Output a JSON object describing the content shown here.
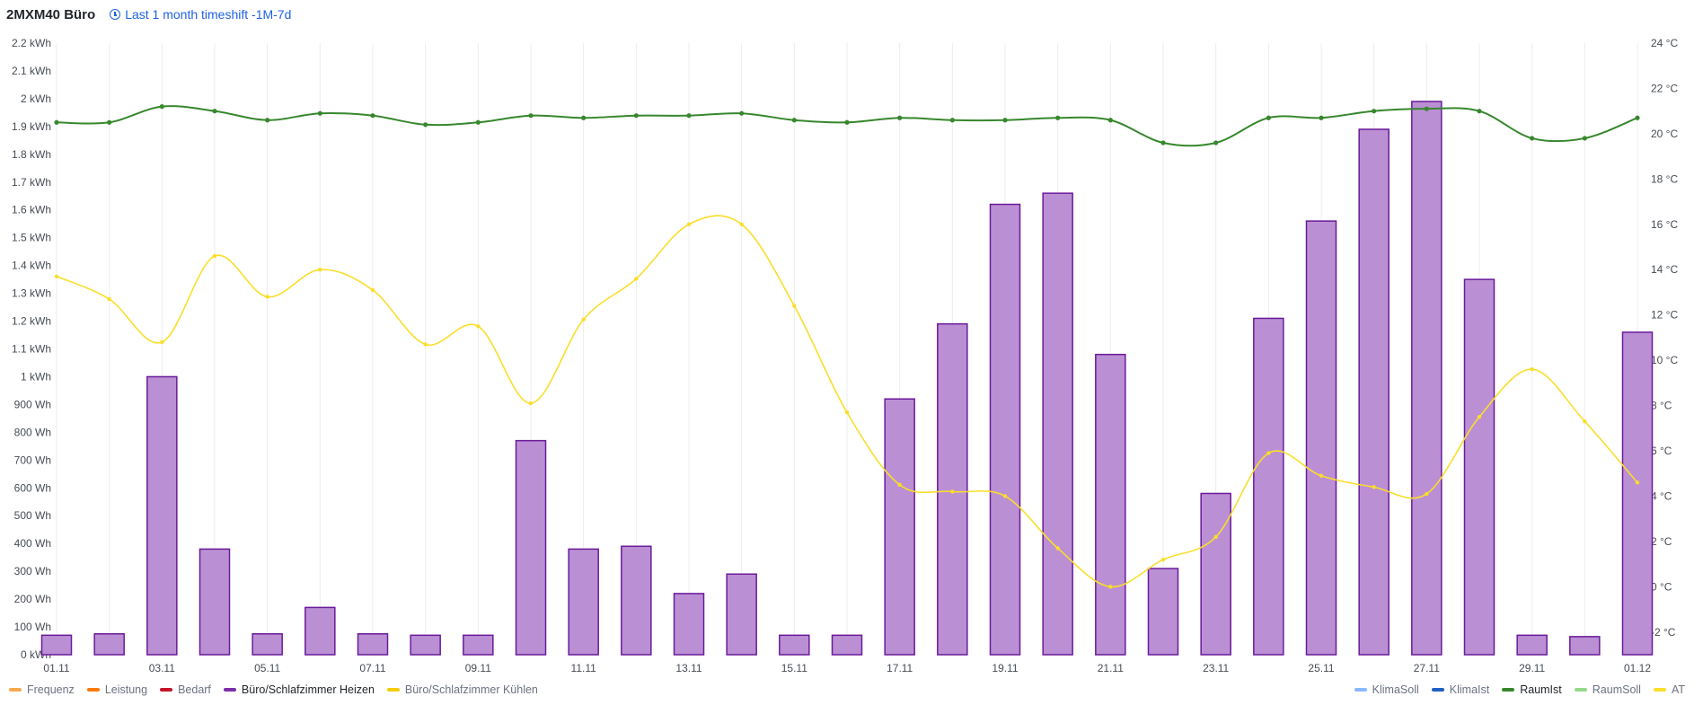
{
  "header": {
    "title": "2MXM40 Büro",
    "timeshift_label": "Last 1 month timeshift -1M-7d"
  },
  "legend_left": [
    {
      "label": "Frequenz",
      "color": "#f5a94d",
      "active": false
    },
    {
      "label": "Leistung",
      "color": "#ff780a",
      "active": false
    },
    {
      "label": "Bedarf",
      "color": "#c4162a",
      "active": false
    },
    {
      "label": "Büro/Schlafzimmer Heizen",
      "color": "#7b2fa8",
      "active": true
    },
    {
      "label": "Büro/Schlafzimmer Kühlen",
      "color": "#f2cc0c",
      "active": false
    }
  ],
  "legend_right": [
    {
      "label": "KlimaSoll",
      "color": "#8ab8ff",
      "active": false
    },
    {
      "label": "KlimaIst",
      "color": "#1f60c4",
      "active": false
    },
    {
      "label": "RaumIst",
      "color": "#37872d",
      "active": true
    },
    {
      "label": "RaumSoll",
      "color": "#96d98d",
      "active": false
    },
    {
      "label": "AT",
      "color": "#fade2a",
      "active": false
    }
  ],
  "chart_data": {
    "type": "bar",
    "x_tick_labels": [
      "01.11",
      "03.11",
      "05.11",
      "07.11",
      "09.11",
      "11.11",
      "13.11",
      "15.11",
      "17.11",
      "19.11",
      "21.11",
      "23.11",
      "25.11",
      "27.11",
      "29.11",
      "01.12"
    ],
    "y_left": {
      "min": 0,
      "max": 2.2,
      "step": 0.1,
      "tick_labels": [
        "0 kWh",
        "100 Wh",
        "200 Wh",
        "300 Wh",
        "400 Wh",
        "500 Wh",
        "600 Wh",
        "700 Wh",
        "800 Wh",
        "900 Wh",
        "1 kWh",
        "1.1 kWh",
        "1.2 kWh",
        "1.3 kWh",
        "1.4 kWh",
        "1.5 kWh",
        "1.6 kWh",
        "1.7 kWh",
        "1.8 kWh",
        "1.9 kWh",
        "2 kWh",
        "2.1 kWh",
        "2.2 kWh"
      ]
    },
    "y_right": {
      "min": -3,
      "max": 24,
      "tick_values": [
        -2,
        0,
        2,
        4,
        6,
        8,
        10,
        12,
        14,
        16,
        18,
        20,
        22,
        24
      ],
      "tick_labels": [
        "-2 °C",
        "0 °C",
        "2 °C",
        "4 °C",
        "6 °C",
        "8 °C",
        "10 °C",
        "12 °C",
        "14 °C",
        "16 °C",
        "18 °C",
        "20 °C",
        "22 °C",
        "24 °C"
      ]
    },
    "grid": "vertical",
    "bar_series": {
      "name": "Büro/Schlafzimmer Heizen",
      "fill": "#bb8fd4",
      "stroke": "#6a1a9a",
      "values": [
        0.07,
        0.075,
        1.0,
        0.38,
        0.075,
        0.17,
        0.075,
        0.07,
        0.07,
        0.77,
        0.38,
        0.39,
        0.22,
        0.29,
        0.07,
        0.07,
        0.92,
        1.19,
        1.62,
        1.66,
        1.08,
        0.31,
        0.58,
        1.21,
        1.56,
        1.89,
        1.99,
        1.35,
        0.07,
        0.065,
        1.16
      ]
    },
    "line_series": [
      {
        "name": "RaumIst",
        "color": "#37872d",
        "values": [
          20.5,
          20.5,
          21.2,
          21.0,
          20.6,
          20.9,
          20.8,
          20.4,
          20.5,
          20.8,
          20.7,
          20.8,
          20.8,
          20.9,
          20.6,
          20.5,
          20.7,
          20.6,
          20.6,
          20.7,
          20.6,
          19.6,
          19.6,
          20.7,
          20.7,
          21.0,
          21.1,
          21.0,
          19.8,
          19.8,
          20.7
        ]
      },
      {
        "name": "AT",
        "color": "#fade2a",
        "values": [
          13.7,
          12.7,
          10.8,
          14.6,
          12.8,
          14.0,
          13.1,
          10.7,
          11.5,
          8.1,
          11.8,
          13.6,
          16.0,
          16.0,
          12.4,
          7.7,
          4.5,
          4.2,
          4.0,
          1.7,
          0.0,
          1.2,
          2.2,
          5.9,
          4.9,
          4.4,
          4.1,
          7.5,
          9.6,
          7.3,
          4.6
        ]
      }
    ]
  }
}
